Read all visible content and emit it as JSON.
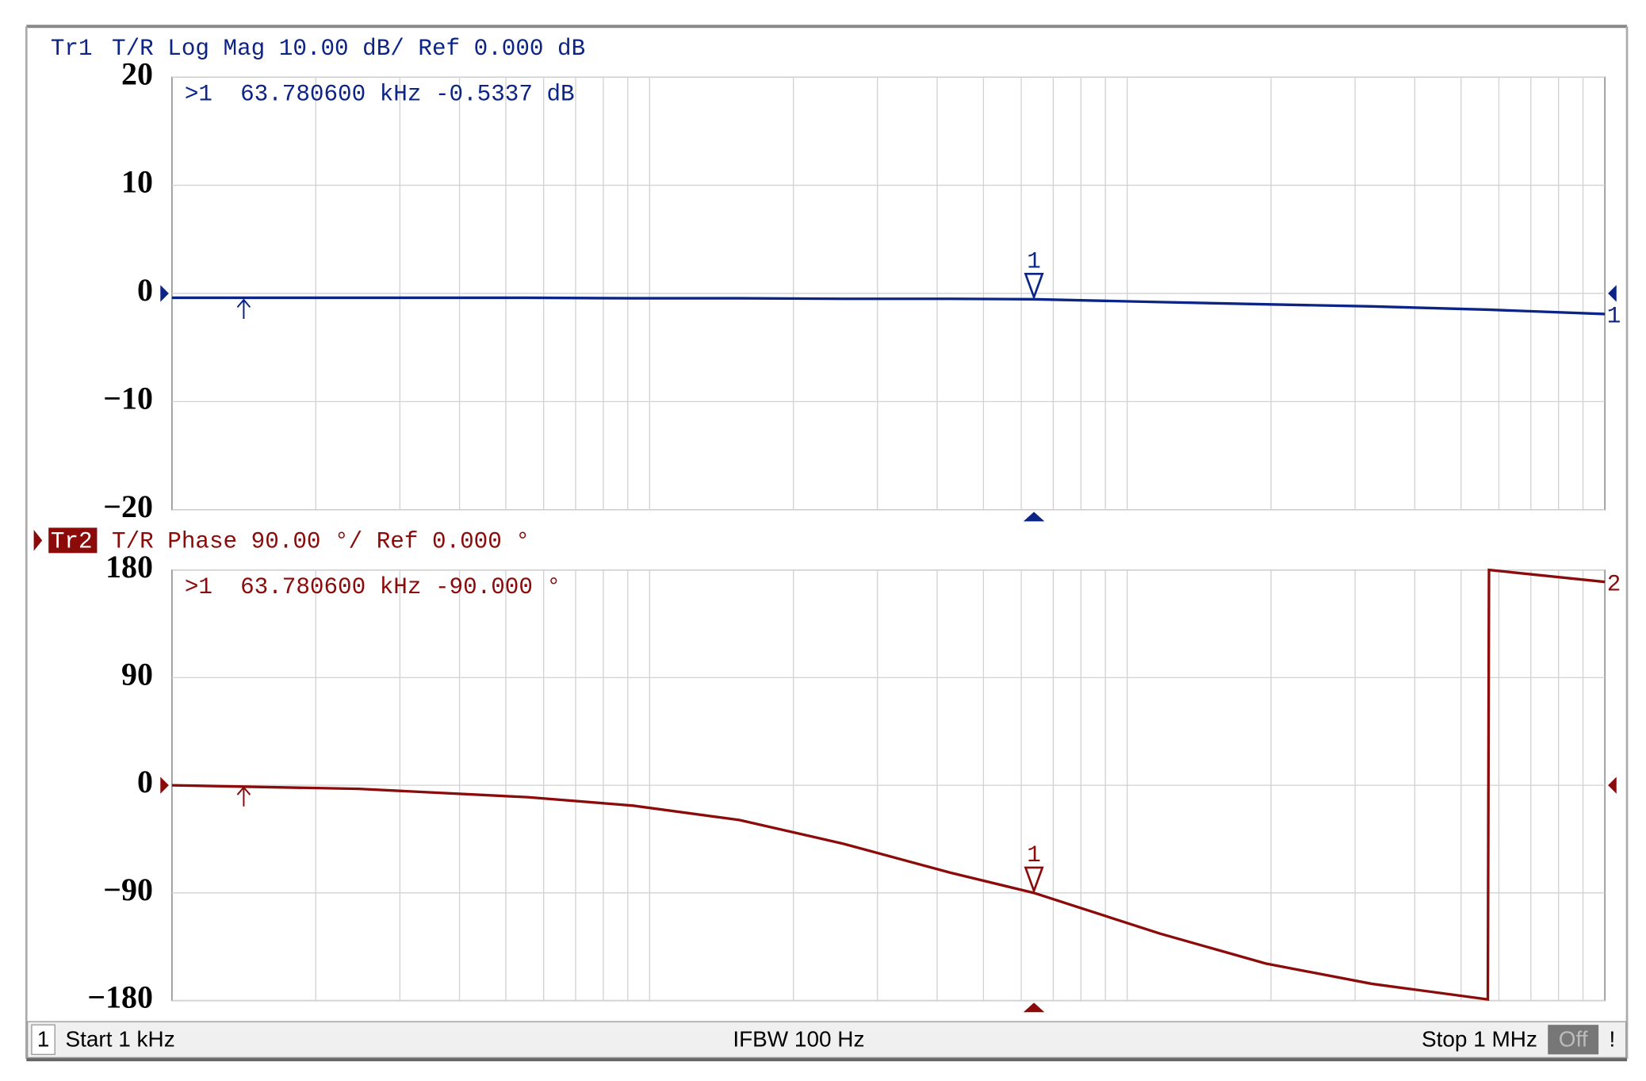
{
  "chart_data": [
    {
      "type": "line",
      "trace_id": "Tr1",
      "title": "T/R Log Mag 10.00 dB/ Ref 0.000 dB",
      "color": "#0b2486",
      "log_x": true,
      "grid": true,
      "xlim": [
        1000,
        1000000
      ],
      "ylim": [
        -20,
        20
      ],
      "yticks": [
        {
          "value": -20,
          "label": "−20"
        },
        {
          "value": -10,
          "label": "−10"
        },
        0,
        10,
        20
      ],
      "xticks": [
        2000,
        3000,
        4000,
        5000,
        6000,
        7000,
        8000,
        9000,
        10000,
        20000,
        30000,
        40000,
        50000,
        60000,
        70000,
        80000,
        90000,
        100000,
        200000,
        300000,
        400000,
        500000,
        600000,
        700000,
        800000,
        900000
      ],
      "reference_level": 0,
      "trace_label": "1",
      "x": [
        1000,
        2460,
        5550,
        9230,
        15400,
        25500,
        42500,
        63780.6,
        117000,
        195000,
        325000,
        569000,
        1000000
      ],
      "values": [
        -0.4,
        -0.4,
        -0.4,
        -0.45,
        -0.45,
        -0.5,
        -0.5,
        -0.5337,
        -0.8,
        -1.0,
        -1.2,
        -1.5,
        -1.9
      ],
      "marker": {
        "label": "1",
        "readout": ">1  63.780600 kHz -0.5337 dB",
        "x": 63780.6,
        "y": -0.5337
      }
    },
    {
      "type": "line",
      "trace_id": "Tr2",
      "title": "T/R Phase 90.00 °/ Ref 0.000 °",
      "color": "#8b0a0a",
      "log_x": true,
      "grid": true,
      "active": true,
      "xlim": [
        1000,
        1000000
      ],
      "ylim": [
        -180,
        180
      ],
      "yticks": [
        {
          "value": -180,
          "label": "−180"
        },
        {
          "value": -90,
          "label": "−90"
        },
        0,
        90,
        180
      ],
      "xticks": [
        2000,
        3000,
        4000,
        5000,
        6000,
        7000,
        8000,
        9000,
        10000,
        20000,
        30000,
        40000,
        50000,
        60000,
        70000,
        80000,
        90000,
        100000,
        200000,
        300000,
        400000,
        500000,
        600000,
        700000,
        800000,
        900000
      ],
      "reference_level": 0,
      "trace_label": "2",
      "x": [
        1000,
        2460,
        5550,
        9230,
        15400,
        25500,
        42500,
        63780.6,
        117000,
        195000,
        325000,
        569000,
        572000,
        1000000
      ],
      "values": [
        0,
        -3,
        -10,
        -17,
        -29,
        -49,
        -73,
        -90,
        -124,
        -149,
        -166,
        -179,
        180,
        170
      ],
      "marker": {
        "label": "1",
        "readout": ">1  63.780600 kHz -90.000 °",
        "x": 63780.6,
        "y": -90
      }
    }
  ],
  "footer": {
    "channel": "1",
    "start": "Start 1 kHz",
    "ifbw": "IFBW 100 Hz",
    "stop": "Stop 1 MHz",
    "state": "Off",
    "alert": "!"
  }
}
